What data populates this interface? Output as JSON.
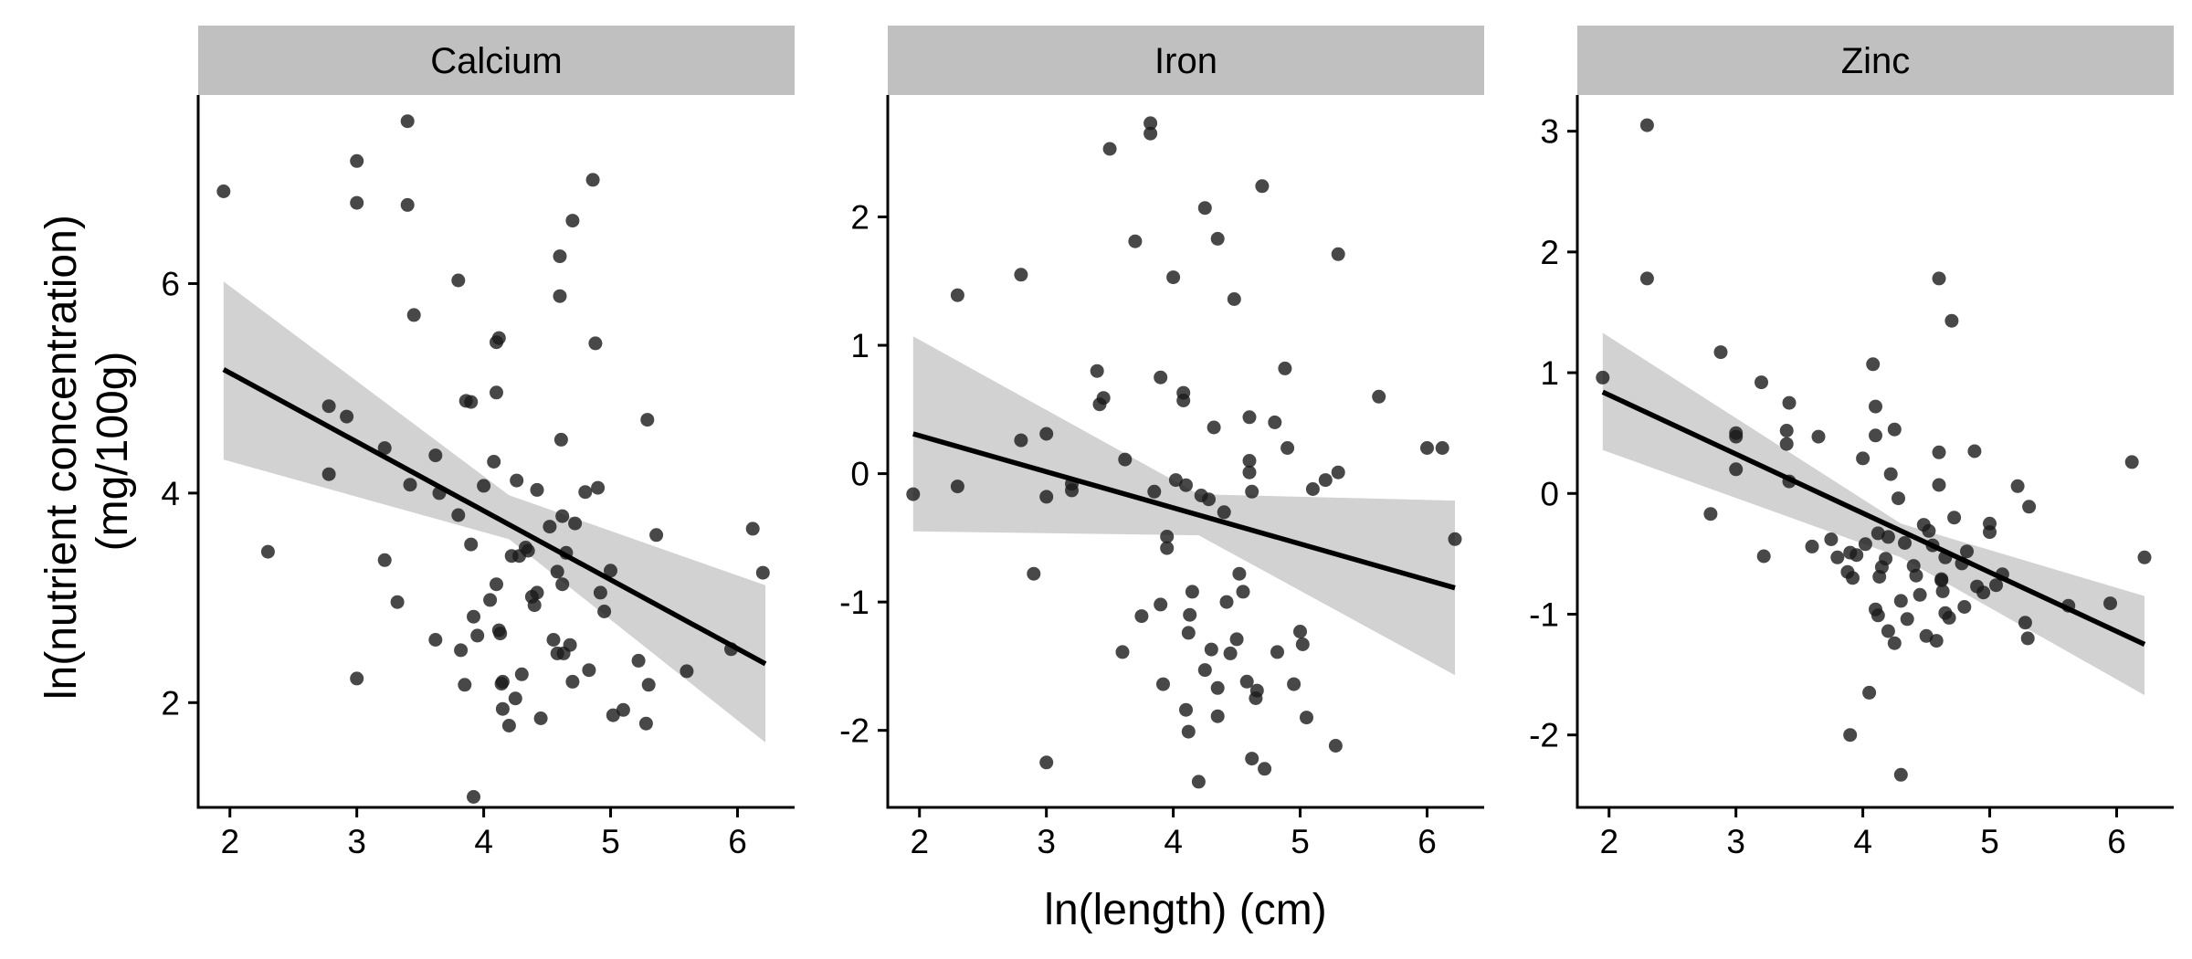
{
  "axes": {
    "xlabel": "ln(length) (cm)",
    "ylabel_line1": "ln(nutrient concentration)",
    "ylabel_line2": "(mg/100g)"
  },
  "style": {
    "strip_fill": "#c0c0c0",
    "point_color": "#1a1a1a",
    "point_opacity": 0.8,
    "line_color": "#000000",
    "band_color": "#d2d2d2"
  },
  "chart_data": [
    {
      "type": "scatter",
      "panel": "Calcium",
      "x_ticks": [
        "2",
        "3",
        "4",
        "5",
        "6"
      ],
      "y_ticks": [
        "2",
        "4",
        "6"
      ],
      "xlim": [
        1.75,
        6.45
      ],
      "ylim": [
        1.0,
        7.8
      ],
      "trend": {
        "x": [
          1.95,
          6.22
        ],
        "y": [
          5.18,
          2.37
        ],
        "ci_upper": [
          6.02,
          3.12
        ],
        "ci_lower": [
          4.32,
          1.62
        ],
        "ci_mid_x": 4.2,
        "ci_mid_upper": 3.98,
        "ci_mid_lower": 3.56
      },
      "points": {
        "x": [
          1.95,
          2.3,
          2.78,
          2.78,
          2.92,
          3.0,
          3.0,
          3.0,
          3.22,
          3.22,
          3.32,
          3.4,
          3.4,
          3.42,
          3.45,
          3.62,
          3.62,
          3.65,
          3.8,
          3.8,
          3.82,
          3.85,
          3.86,
          3.9,
          3.9,
          3.92,
          3.92,
          3.95,
          4.0,
          4.05,
          4.08,
          4.1,
          4.1,
          4.1,
          4.12,
          4.12,
          4.13,
          4.14,
          4.15,
          4.15,
          4.2,
          4.22,
          4.25,
          4.26,
          4.28,
          4.3,
          4.33,
          4.38,
          4.4,
          4.42,
          4.42,
          4.45,
          4.52,
          4.55,
          4.58,
          4.6,
          4.6,
          4.61,
          4.62,
          4.62,
          4.63,
          4.65,
          4.68,
          4.7,
          4.72,
          4.8,
          4.83,
          4.86,
          4.88,
          4.9,
          4.95,
          5.0,
          5.1,
          5.22,
          5.29,
          5.3,
          5.36,
          5.6,
          5.95,
          6.12,
          6.2,
          5.28,
          4.92,
          4.7,
          5.02,
          4.58,
          4.35
        ],
        "y": [
          6.88,
          3.44,
          4.83,
          4.18,
          4.73,
          7.17,
          6.77,
          2.23,
          4.43,
          3.36,
          2.96,
          7.55,
          6.75,
          4.08,
          5.7,
          4.36,
          2.6,
          4.0,
          6.03,
          3.79,
          2.5,
          2.17,
          4.88,
          4.87,
          3.51,
          2.82,
          1.1,
          2.64,
          4.07,
          2.98,
          4.3,
          5.44,
          4.96,
          3.13,
          5.48,
          2.69,
          2.66,
          2.18,
          2.2,
          1.94,
          1.78,
          3.4,
          2.04,
          4.12,
          3.4,
          2.27,
          3.48,
          3.01,
          2.93,
          4.03,
          3.05,
          1.85,
          3.68,
          2.6,
          2.47,
          6.26,
          5.88,
          4.51,
          3.78,
          3.13,
          2.47,
          3.43,
          2.55,
          6.6,
          3.71,
          4.01,
          2.31,
          6.99,
          5.43,
          4.05,
          2.87,
          3.26,
          1.93,
          2.4,
          4.7,
          2.17,
          3.6,
          2.3,
          2.51,
          3.66,
          3.24,
          1.8,
          3.05,
          2.2,
          1.88,
          3.25,
          3.45
        ]
      }
    },
    {
      "type": "scatter",
      "panel": "Iron",
      "x_ticks": [
        "2",
        "3",
        "4",
        "5",
        "6"
      ],
      "y_ticks": [
        "-2",
        "-1",
        "0",
        "1",
        "2"
      ],
      "xlim": [
        1.75,
        6.45
      ],
      "ylim": [
        -2.6,
        2.95
      ],
      "trend": {
        "x": [
          1.95,
          6.22
        ],
        "y": [
          0.31,
          -0.89
        ],
        "ci_upper": [
          1.07,
          -0.21
        ],
        "ci_lower": [
          -0.45,
          -1.57
        ],
        "ci_mid_x": 4.2,
        "ci_mid_upper": -0.16,
        "ci_mid_lower": -0.48
      },
      "points": {
        "x": [
          1.95,
          2.3,
          2.3,
          2.8,
          2.8,
          2.9,
          3.0,
          3.0,
          3.0,
          3.2,
          3.2,
          3.4,
          3.42,
          3.45,
          3.5,
          3.6,
          3.62,
          3.7,
          3.75,
          3.82,
          3.82,
          3.85,
          3.9,
          3.9,
          3.92,
          3.95,
          4.0,
          4.02,
          4.08,
          4.08,
          4.1,
          4.1,
          4.12,
          4.12,
          4.13,
          4.15,
          4.2,
          4.22,
          4.25,
          4.25,
          4.28,
          4.3,
          4.32,
          4.35,
          4.35,
          4.4,
          4.42,
          4.45,
          4.48,
          4.5,
          4.52,
          4.55,
          4.58,
          4.6,
          4.6,
          4.6,
          4.62,
          4.62,
          4.65,
          4.66,
          4.7,
          4.72,
          4.8,
          4.82,
          4.88,
          4.9,
          4.95,
          5.0,
          5.02,
          5.05,
          5.1,
          5.2,
          5.28,
          5.3,
          5.3,
          5.62,
          6.0,
          6.12,
          6.22,
          4.35,
          3.95
        ],
        "y": [
          -0.16,
          1.39,
          -0.1,
          1.55,
          0.26,
          -0.78,
          0.31,
          -0.18,
          -2.25,
          -0.08,
          -0.13,
          0.8,
          0.54,
          0.59,
          2.53,
          -1.39,
          0.11,
          1.81,
          -1.11,
          2.73,
          2.65,
          -0.14,
          0.75,
          -1.02,
          -1.64,
          -0.49,
          1.53,
          -0.05,
          0.63,
          0.57,
          -0.09,
          -1.84,
          -2.01,
          -1.24,
          -1.1,
          -0.92,
          -2.4,
          -0.17,
          2.07,
          -1.53,
          -0.2,
          -1.37,
          0.36,
          1.83,
          -1.67,
          -0.3,
          -1.0,
          -1.4,
          1.36,
          -1.29,
          -0.78,
          -0.92,
          -1.62,
          0.44,
          0.1,
          0.01,
          -0.14,
          -2.22,
          -1.75,
          -1.69,
          2.24,
          -2.3,
          0.4,
          -1.39,
          0.82,
          0.2,
          -1.64,
          -1.23,
          -1.33,
          -1.9,
          -0.12,
          -0.05,
          -2.12,
          0.01,
          1.71,
          0.6,
          0.2,
          0.2,
          -0.51,
          -1.89,
          -0.58
        ]
      }
    },
    {
      "type": "scatter",
      "panel": "Zinc",
      "x_ticks": [
        "2",
        "3",
        "4",
        "5",
        "6"
      ],
      "y_ticks": [
        "-2",
        "-1",
        "0",
        "1",
        "2",
        "3"
      ],
      "xlim": [
        1.75,
        6.45
      ],
      "ylim": [
        -2.6,
        3.3
      ],
      "trend": {
        "x": [
          1.95,
          6.22
        ],
        "y": [
          0.84,
          -1.25
        ],
        "ci_upper": [
          1.33,
          -0.85
        ],
        "ci_lower": [
          0.36,
          -1.67
        ],
        "ci_mid_x": 4.3,
        "ci_mid_upper": -0.25,
        "ci_mid_lower": -0.53
      },
      "points": {
        "x": [
          1.95,
          2.3,
          2.3,
          2.8,
          2.88,
          3.0,
          3.0,
          3.0,
          3.2,
          3.22,
          3.4,
          3.4,
          3.42,
          3.42,
          3.6,
          3.65,
          3.75,
          3.8,
          3.88,
          3.9,
          3.9,
          3.92,
          3.95,
          4.0,
          4.02,
          4.05,
          4.08,
          4.1,
          4.1,
          4.1,
          4.12,
          4.12,
          4.13,
          4.15,
          4.18,
          4.2,
          4.22,
          4.25,
          4.25,
          4.28,
          4.3,
          4.3,
          4.33,
          4.35,
          4.4,
          4.42,
          4.45,
          4.48,
          4.5,
          4.52,
          4.55,
          4.58,
          4.6,
          4.6,
          4.6,
          4.62,
          4.62,
          4.63,
          4.65,
          4.68,
          4.7,
          4.72,
          4.78,
          4.8,
          4.82,
          4.88,
          4.9,
          4.95,
          5.0,
          5.0,
          5.05,
          5.1,
          5.22,
          5.28,
          5.3,
          5.31,
          5.62,
          5.95,
          6.12,
          6.22,
          4.65,
          4.2
        ],
        "y": [
          0.96,
          3.05,
          1.78,
          -0.17,
          1.17,
          0.5,
          0.47,
          0.2,
          0.92,
          -0.52,
          0.52,
          0.41,
          0.75,
          0.1,
          -0.44,
          0.47,
          -0.38,
          -0.53,
          -0.65,
          -2.0,
          -0.49,
          -0.7,
          -0.51,
          0.29,
          -0.42,
          -1.65,
          1.07,
          0.72,
          0.48,
          -0.96,
          -0.33,
          -1.01,
          -0.69,
          -0.61,
          -0.54,
          -1.14,
          0.16,
          0.53,
          -1.24,
          -0.04,
          -2.33,
          -0.89,
          -0.41,
          -1.04,
          -0.6,
          -0.68,
          -0.84,
          -0.26,
          -1.18,
          -0.31,
          -0.43,
          -1.22,
          1.78,
          0.34,
          0.07,
          -0.71,
          -0.72,
          -0.81,
          -0.53,
          -1.03,
          1.43,
          -0.2,
          -0.58,
          -0.94,
          -0.48,
          0.35,
          -0.77,
          -0.82,
          -0.25,
          -0.32,
          -0.76,
          -0.67,
          0.06,
          -1.07,
          -1.2,
          -0.11,
          -0.93,
          -0.91,
          0.26,
          -0.53,
          -0.99,
          -0.36
        ]
      }
    }
  ]
}
